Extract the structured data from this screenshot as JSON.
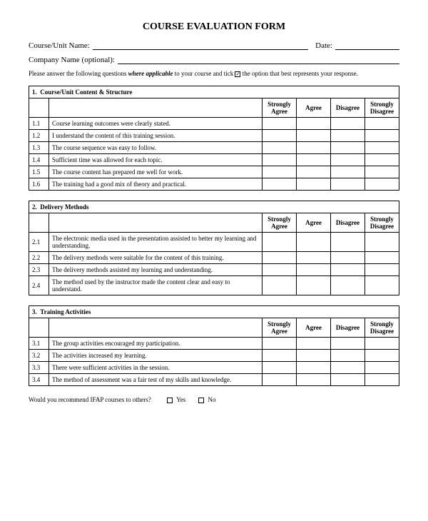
{
  "title": "COURSE EVALUATION FORM",
  "fields": {
    "course_label": "Course/Unit Name:",
    "date_label": "Date:",
    "company_label": "Company Name (optional):"
  },
  "instructions": {
    "prefix": "Please answer the following questions ",
    "emph": "where applicable",
    "suffix": " to your course and tick ",
    "tick_mark": "☑",
    "tail": " the option that best represents your response."
  },
  "rating_headers": {
    "sa": "Strongly Agree",
    "a": "Agree",
    "d": "Disagree",
    "sd": "Strongly Disagree"
  },
  "sections": [
    {
      "num": "1.",
      "title": "Course/Unit Content & Structure",
      "rows": [
        {
          "n": "1.1",
          "text": "Course learning outcomes were clearly stated."
        },
        {
          "n": "1.2",
          "text": "I understand the content of this training session."
        },
        {
          "n": "1.3",
          "text": "The course sequence was easy to follow."
        },
        {
          "n": "1.4",
          "text": "Sufficient time was allowed for each topic."
        },
        {
          "n": "1.5",
          "text": "The course content has prepared me well for work."
        },
        {
          "n": "1.6",
          "text": "The training had a good mix of theory and practical."
        }
      ]
    },
    {
      "num": "2.",
      "title": "Delivery Methods",
      "rows": [
        {
          "n": "2.1",
          "text": "The electronic media used in the presentation assisted to better my learning and understanding."
        },
        {
          "n": "2.2",
          "text": "The delivery methods were suitable for the content of this training."
        },
        {
          "n": "2.3",
          "text": "The delivery methods assisted my learning and understanding."
        },
        {
          "n": "2.4",
          "text": "The method used by the instructor made the content clear and easy to understand."
        }
      ]
    },
    {
      "num": "3.",
      "title": "Training Activities",
      "rows": [
        {
          "n": "3.1",
          "text": "The group activities encouraged my participation."
        },
        {
          "n": "3.2",
          "text": "The activities increased my learning."
        },
        {
          "n": "3.3",
          "text": "There were sufficient activities in the session."
        },
        {
          "n": "3.4",
          "text": "The method of assessment was a fair test of my skills and knowledge."
        }
      ]
    }
  ],
  "recommend": {
    "question": "Would you recommend IFAP courses to others?",
    "yes": "Yes",
    "no": "No"
  }
}
